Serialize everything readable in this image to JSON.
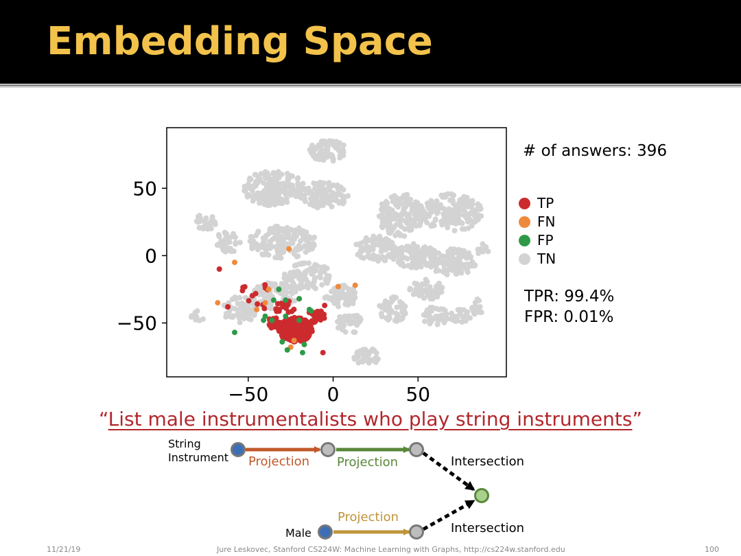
{
  "slide": {
    "title": "Embedding Space",
    "query_open": "“",
    "query_text": "List male instrumentalists who play string instruments",
    "query_close": "”",
    "footer_date": "11/21/19",
    "footer_credit": "Jure Leskovec, Stanford CS224W: Machine Learning with Graphs, http://cs224w.stanford.edu",
    "footer_page": "100"
  },
  "colors": {
    "title": "#f2c24b",
    "TP": "#cc2b2e",
    "FN": "#ef8a3c",
    "FP": "#2e9a48",
    "TN": "#d3d3d3",
    "anchor_node": "#3d6fb6",
    "var_node": "#a6a6a6",
    "target_node": "#a9d18e",
    "projection_1": "#c0582b",
    "projection_2": "#58873a",
    "projection_3": "#c0953a"
  },
  "chart_data": {
    "type": "scatter",
    "title": "",
    "xlabel": "",
    "ylabel": "",
    "xlim": [
      -98,
      102
    ],
    "ylim": [
      -90,
      95
    ],
    "xticks": [
      -50,
      0,
      50
    ],
    "yticks": [
      50,
      0,
      -50
    ],
    "xtick_labels": [
      "−50",
      "0",
      "50"
    ],
    "ytick_labels": [
      "50",
      "0",
      "−50"
    ],
    "legend_position": "right",
    "series": [
      {
        "name": "TN",
        "color": "#d3d3d3",
        "clusters": [
          {
            "cx": -3,
            "cy": 78,
            "rx": 11,
            "ry": 8,
            "n": 80
          },
          {
            "cx": -35,
            "cy": 50,
            "rx": 18,
            "ry": 13,
            "n": 170
          },
          {
            "cx": -5,
            "cy": 45,
            "rx": 14,
            "ry": 10,
            "n": 110
          },
          {
            "cx": 40,
            "cy": 30,
            "rx": 14,
            "ry": 16,
            "n": 150
          },
          {
            "cx": 70,
            "cy": 32,
            "rx": 18,
            "ry": 14,
            "n": 170
          },
          {
            "cx": -75,
            "cy": 25,
            "rx": 7,
            "ry": 6,
            "n": 35
          },
          {
            "cx": -62,
            "cy": 10,
            "rx": 8,
            "ry": 8,
            "n": 40
          },
          {
            "cx": -30,
            "cy": 10,
            "rx": 20,
            "ry": 12,
            "n": 160
          },
          {
            "cx": 25,
            "cy": 5,
            "rx": 12,
            "ry": 10,
            "n": 90
          },
          {
            "cx": 48,
            "cy": 0,
            "rx": 13,
            "ry": 9,
            "n": 100
          },
          {
            "cx": 70,
            "cy": -5,
            "rx": 14,
            "ry": 10,
            "n": 100
          },
          {
            "cx": 55,
            "cy": -25,
            "rx": 10,
            "ry": 8,
            "n": 60
          },
          {
            "cx": 35,
            "cy": -40,
            "rx": 8,
            "ry": 10,
            "n": 55
          },
          {
            "cx": 60,
            "cy": -45,
            "rx": 8,
            "ry": 7,
            "n": 40
          },
          {
            "cx": 75,
            "cy": -45,
            "rx": 6,
            "ry": 5,
            "n": 25
          },
          {
            "cx": 85,
            "cy": -38,
            "rx": 4,
            "ry": 6,
            "n": 15
          },
          {
            "cx": 10,
            "cy": -50,
            "rx": 8,
            "ry": 8,
            "n": 45
          },
          {
            "cx": 20,
            "cy": -75,
            "rx": 8,
            "ry": 6,
            "n": 40
          },
          {
            "cx": -55,
            "cy": -40,
            "rx": 10,
            "ry": 10,
            "n": 55
          },
          {
            "cx": -35,
            "cy": -30,
            "rx": 14,
            "ry": 10,
            "n": 90
          },
          {
            "cx": -15,
            "cy": -15,
            "rx": 14,
            "ry": 10,
            "n": 90
          },
          {
            "cx": 5,
            "cy": -30,
            "rx": 10,
            "ry": 8,
            "n": 60
          },
          {
            "cx": -80,
            "cy": -45,
            "rx": 4,
            "ry": 4,
            "n": 10
          },
          {
            "cx": 88,
            "cy": 5,
            "rx": 4,
            "ry": 5,
            "n": 10
          }
        ]
      },
      {
        "name": "TP",
        "color": "#cc2b2e",
        "clusters": [
          {
            "cx": -22,
            "cy": -55,
            "rx": 10,
            "ry": 9,
            "n": 280
          },
          {
            "cx": -35,
            "cy": -50,
            "rx": 5,
            "ry": 4,
            "n": 30
          },
          {
            "cx": -10,
            "cy": -45,
            "rx": 5,
            "ry": 5,
            "n": 30
          },
          {
            "cx": -28,
            "cy": -40,
            "rx": 7,
            "ry": 8,
            "n": 15
          },
          {
            "cx": -45,
            "cy": -30,
            "rx": 10,
            "ry": 12,
            "n": 12
          }
        ],
        "points": [
          [
            -67,
            -10
          ],
          [
            -62,
            -38
          ],
          [
            -5,
            -37
          ],
          [
            -6,
            -72
          ],
          [
            -20,
            -32
          ]
        ]
      },
      {
        "name": "FN",
        "color": "#ef8a3c",
        "points": [
          [
            -58,
            -5
          ],
          [
            -26,
            5
          ],
          [
            -68,
            -35
          ],
          [
            -45,
            -40
          ],
          [
            -40,
            -35
          ],
          [
            -38,
            -25
          ],
          [
            3,
            -23
          ],
          [
            13,
            -22
          ],
          [
            -25,
            -68
          ],
          [
            -23,
            -63
          ]
        ]
      },
      {
        "name": "FP",
        "color": "#2e9a48",
        "points": [
          [
            -32,
            -25
          ],
          [
            -35,
            -33
          ],
          [
            -20,
            -32
          ],
          [
            -28,
            -33
          ],
          [
            -40,
            -45
          ],
          [
            -14,
            -40
          ],
          [
            -28,
            -45
          ],
          [
            -36,
            -48
          ],
          [
            -20,
            -48
          ],
          [
            -17,
            -66
          ],
          [
            -27,
            -70
          ],
          [
            -30,
            -64
          ],
          [
            -18,
            -72
          ],
          [
            -58,
            -57
          ],
          [
            -41,
            -48
          ],
          [
            -13,
            -41
          ]
        ]
      }
    ]
  },
  "legend": [
    {
      "key": "TP",
      "label": "TP"
    },
    {
      "key": "FN",
      "label": "FN"
    },
    {
      "key": "FP",
      "label": "FP"
    },
    {
      "key": "TN",
      "label": "TN"
    }
  ],
  "stats": {
    "answers": "# of answers: 396",
    "tpr": "TPR: 99.4%",
    "fpr": "FPR: 0.01%"
  },
  "diagram": {
    "anchor_label": "String Instrument",
    "anchor_label_line1": "String",
    "anchor_label_line2": "Instrument",
    "male_label": "Male",
    "proj1": "Projection",
    "proj2": "Projection",
    "proj3": "Projection",
    "intersection_top": "Intersection",
    "intersection_bottom": "Intersection"
  }
}
